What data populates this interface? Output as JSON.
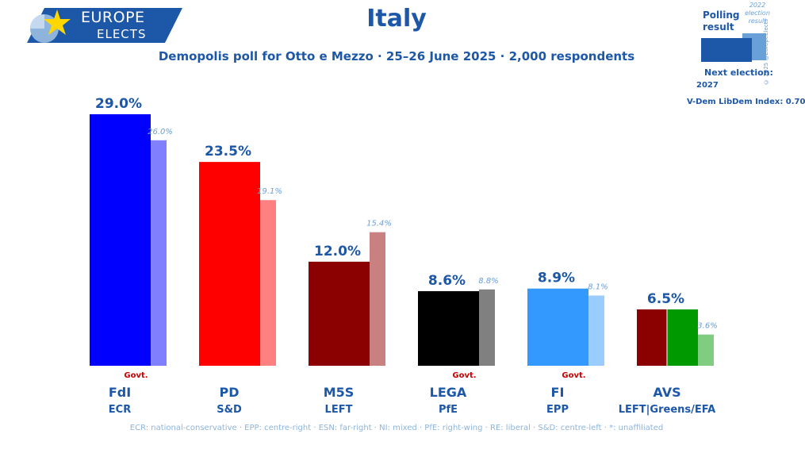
{
  "header": {
    "logo_line1": "EUROPE",
    "logo_line2": "ELECTS",
    "title": "Italy",
    "subtitle": "Demopolis poll for Otto e Mezzo · 25–26 June 2025 · 2,000 respondents"
  },
  "legend": {
    "polling_label": "Polling result",
    "election_label": "2022 election result",
    "copyright": "© 2025 @EuropeElects",
    "next_election_label": "Next election:",
    "next_election_value": "2027",
    "vdem": "V-Dem LibDem Index: 0.70"
  },
  "footer": {
    "text": "ECR: national-conservative · EPP: centre-right · ESN: far-right · NI: mixed · PfE: right-wing · RE: liberal · S&D: centre-left · *: unaffiliated"
  },
  "colors": {
    "brand_blue": "#1d57a8",
    "light_blue_text": "#6aa0d8",
    "govt_red": "#cc0000"
  },
  "chart_data": {
    "type": "bar",
    "ylim": [
      0,
      30
    ],
    "categories": [
      "FdI",
      "PD",
      "M5S",
      "LEGA",
      "FI",
      "AVS"
    ],
    "groups": [
      "ECR",
      "S&D",
      "LEFT",
      "PfE",
      "EPP",
      "LEFT|Greens/EFA"
    ],
    "government": [
      true,
      false,
      false,
      true,
      true,
      false
    ],
    "govt_label": "Govt.",
    "series": [
      {
        "name": "Polling result",
        "values": [
          29.0,
          23.5,
          12.0,
          8.6,
          8.9,
          6.5
        ],
        "labels": [
          "29.0%",
          "23.5%",
          "12.0%",
          "8.6%",
          "8.9%",
          "6.5%"
        ]
      },
      {
        "name": "2022 election result",
        "values": [
          26.0,
          19.1,
          15.4,
          8.8,
          8.1,
          3.6
        ],
        "labels": [
          "26.0%",
          "19.1%",
          "15.4%",
          "8.8%",
          "8.1%",
          "3.6%"
        ]
      }
    ],
    "bar_colors": [
      "#0000ff",
      "#ff0000",
      "#8b0000",
      "#000000",
      "#3399ff",
      [
        "#8b0000",
        "#009900"
      ]
    ],
    "prev_colors": [
      "#8080ff",
      "#ff8080",
      "#c98080",
      "#808080",
      "#99ccff",
      "#80cc80"
    ]
  }
}
